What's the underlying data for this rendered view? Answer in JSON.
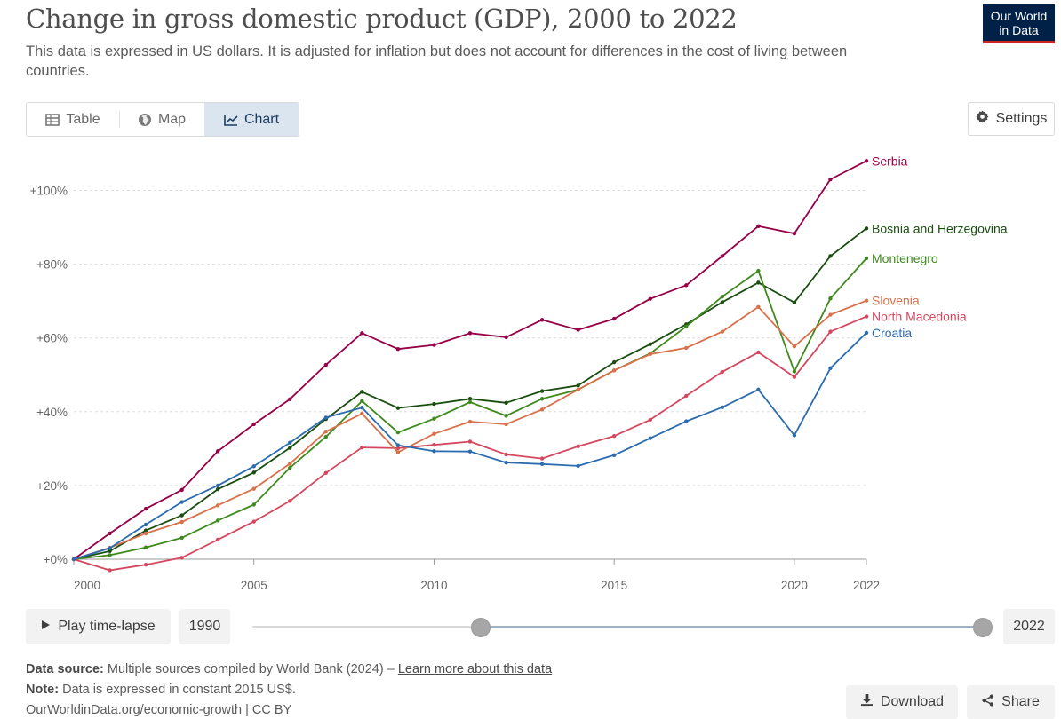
{
  "header": {
    "title": "Change in gross domestic product (GDP), 2000 to 2022",
    "subtitle": "This data is expressed in US dollars. It is adjusted for inflation but does not account for differences in the cost of living between countries.",
    "logo_line1": "Our World",
    "logo_line2": "in Data"
  },
  "tabs": [
    {
      "label": "Table",
      "icon": "table-icon"
    },
    {
      "label": "Map",
      "icon": "globe-icon"
    },
    {
      "label": "Chart",
      "icon": "line-chart-icon",
      "active": true
    }
  ],
  "settings_label": "Settings",
  "controls": {
    "play_label": "Play time-lapse",
    "start_year": "1990",
    "end_year": "2022",
    "slider_start_fraction": 0.3125,
    "slider_end_fraction": 1.0
  },
  "footer": {
    "source_label": "Data source:",
    "source_text": "Multiple sources compiled by World Bank (2024) –",
    "source_link": "Learn more about this data",
    "note_label": "Note:",
    "note_text": "Data is expressed in constant 2015 US$.",
    "url": "OurWorldinData.org/economic-growth | CC BY",
    "download_label": "Download",
    "share_label": "Share"
  },
  "chart_data": {
    "type": "line",
    "title": "Change in gross domestic product (GDP), 2000 to 2022",
    "xlabel": "",
    "ylabel": "",
    "xlim": [
      2000,
      2022
    ],
    "ylim": [
      -3,
      110
    ],
    "x_ticks": [
      "2000",
      "2005",
      "2010",
      "2015",
      "2020",
      "2022"
    ],
    "y_ticks": [
      "+0%",
      "+20%",
      "+40%",
      "+60%",
      "+80%",
      "+100%"
    ],
    "grid": "horizontal-dotted",
    "legend": "right-end-labels",
    "x": [
      2000,
      2001,
      2002,
      2003,
      2004,
      2005,
      2006,
      2007,
      2008,
      2009,
      2010,
      2011,
      2012,
      2013,
      2014,
      2015,
      2016,
      2017,
      2018,
      2019,
      2020,
      2021,
      2022
    ],
    "series": [
      {
        "name": "Serbia",
        "color": "#970046",
        "values": [
          0,
          7,
          13.7,
          18.8,
          29.3,
          36.6,
          43.4,
          52.7,
          61.3,
          57,
          58.1,
          61.3,
          60.2,
          64.9,
          62.2,
          65.2,
          70.6,
          74.3,
          82.2,
          90.3,
          88.3,
          103,
          108
        ]
      },
      {
        "name": "Bosnia and Herzegovina",
        "color": "#1a4d10",
        "values": [
          0,
          2.2,
          7.8,
          11.9,
          19,
          23.5,
          30.2,
          38,
          45.4,
          41,
          42.1,
          43.5,
          42.4,
          45.6,
          47.1,
          53.4,
          58.3,
          63.7,
          69.7,
          75,
          69.6,
          82.2,
          89.7
        ]
      },
      {
        "name": "Montenegro",
        "color": "#3f8a1d",
        "values": [
          0,
          1.1,
          3.2,
          5.8,
          10.5,
          14.8,
          24.8,
          33.2,
          42.9,
          34.4,
          38.1,
          42.6,
          38.9,
          43.5,
          46,
          51.2,
          55.8,
          63.1,
          71.2,
          78.2,
          50.9,
          70.7,
          81.6
        ]
      },
      {
        "name": "North Macedonia",
        "color": "#d5475e",
        "values": [
          0,
          -3,
          -1.5,
          0.4,
          5.3,
          10.2,
          15.8,
          23.4,
          30.3,
          30.1,
          31,
          31.9,
          28.4,
          27.3,
          30.6,
          33.4,
          37.8,
          44.3,
          50.8,
          56.1,
          49.4,
          61.7,
          65.8
        ]
      },
      {
        "name": "Slovenia",
        "color": "#d9704a",
        "values": [
          0,
          3.1,
          7,
          10.1,
          14.6,
          19.1,
          25.9,
          34.6,
          39.5,
          29,
          34,
          37.3,
          36.6,
          40.6,
          46,
          51.2,
          55.6,
          57.3,
          61.7,
          68.4,
          57.7,
          66.3,
          70.1
        ]
      },
      {
        "name": "Croatia",
        "color": "#2b6cb0",
        "values": [
          0,
          3,
          9.4,
          15.5,
          20,
          25.2,
          31.6,
          38.4,
          41.1,
          30.9,
          29.3,
          29.2,
          26.2,
          25.8,
          25.3,
          28.2,
          32.8,
          37.4,
          41.2,
          46,
          33.6,
          51.8,
          61.4
        ]
      }
    ]
  }
}
